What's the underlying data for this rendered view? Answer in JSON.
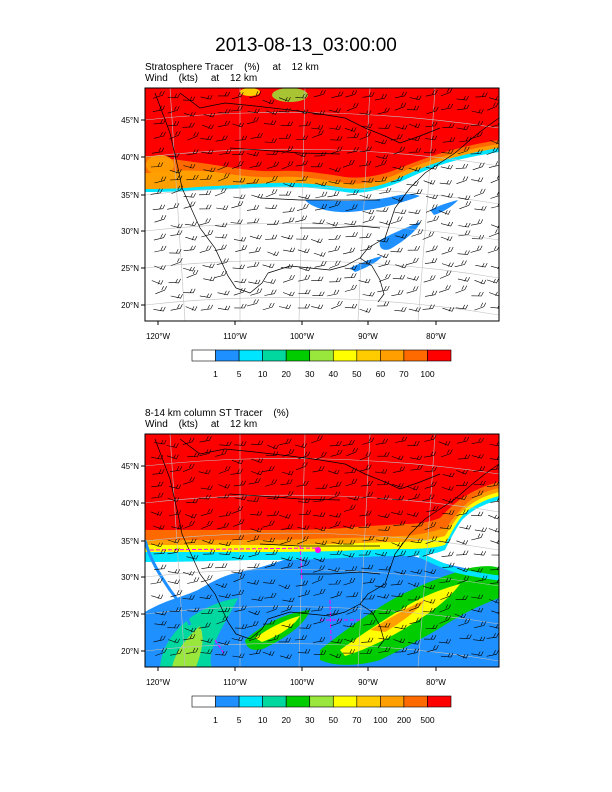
{
  "page_title": "2013-08-13_03:00:00",
  "chart_data": [
    {
      "type": "heatmap",
      "title_line1": [
        "Stratosphere Tracer",
        "(%)",
        "at",
        "12 km"
      ],
      "title_line2": [
        "Wind",
        "(kts)",
        "at",
        "12 km"
      ],
      "lon_ticks": [
        "120°W",
        "110°W",
        "100°W",
        "90°W",
        "80°W"
      ],
      "lat_ticks": [
        "45°N",
        "40°N",
        "35°N",
        "30°N",
        "25°N",
        "20°N"
      ],
      "colorbar": {
        "colors": [
          "#ffffff",
          "#1e90ff",
          "#00e5ff",
          "#00d8a0",
          "#00cc00",
          "#99e63c",
          "#ffff00",
          "#ffcc00",
          "#ffa000",
          "#ff6a00",
          "#ff0000"
        ],
        "labels": [
          "1",
          "5",
          "10",
          "20",
          "30",
          "40",
          "50",
          "60",
          "70",
          "100"
        ]
      },
      "fields": [
        "Stratosphere Tracer",
        "Wind"
      ]
    },
    {
      "type": "heatmap",
      "title_line1": [
        "8-14 km column ST Tracer",
        "(%)"
      ],
      "title_line2": [
        "Wind",
        "(kts)",
        "at",
        "12 km"
      ],
      "lon_ticks": [
        "120°W",
        "110°W",
        "100°W",
        "90°W",
        "80°W"
      ],
      "lat_ticks": [
        "45°N",
        "40°N",
        "35°N",
        "30°N",
        "25°N",
        "20°N"
      ],
      "colorbar": {
        "colors": [
          "#ffffff",
          "#1e90ff",
          "#00e5ff",
          "#00d8a0",
          "#00cc00",
          "#99e63c",
          "#ffff00",
          "#ffcc00",
          "#ffa000",
          "#ff6a00",
          "#ff0000"
        ],
        "labels": [
          "1",
          "5",
          "10",
          "20",
          "30",
          "50",
          "70",
          "100",
          "200",
          "500"
        ]
      },
      "fields": [
        "8-14 km column ST Tracer",
        "Wind"
      ]
    }
  ]
}
